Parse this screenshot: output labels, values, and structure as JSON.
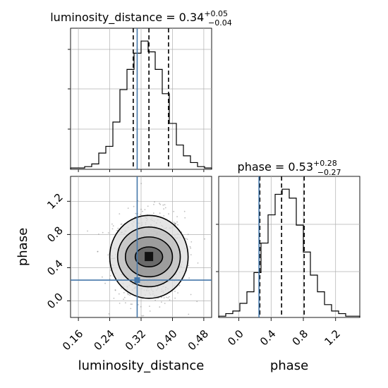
{
  "chart_data": {
    "type": "corner",
    "parameters": [
      "luminosity_distance",
      "phase"
    ],
    "axis_labels": {
      "x_bottom_left": "luminosity_distance",
      "x_bottom_right": "phase",
      "y_left": "phase"
    },
    "titles": [
      {
        "name": "luminosity_distance",
        "prefix": "luminosity_distance = 0.34",
        "sup": "+0.05",
        "sub": "−0.04"
      },
      {
        "name": "phase",
        "prefix": "phase = 0.53",
        "sup": "+0.28",
        "sub": "−0.27"
      }
    ],
    "truths": {
      "luminosity_distance": 0.31,
      "phase": 0.25
    },
    "luminosity_distance": {
      "xlim": [
        0.14,
        0.5
      ],
      "ticks": [
        "0.16",
        "0.24",
        "0.32",
        "0.40",
        "0.48"
      ],
      "tick_values": [
        0.16,
        0.24,
        0.32,
        0.4,
        0.48
      ],
      "quantiles": [
        0.3,
        0.34,
        0.39
      ],
      "hist": {
        "edges": [
          0.14,
          0.158,
          0.176,
          0.194,
          0.212,
          0.23,
          0.248,
          0.266,
          0.284,
          0.302,
          0.32,
          0.338,
          0.356,
          0.374,
          0.392,
          0.41,
          0.428,
          0.446,
          0.464,
          0.482,
          0.5
        ],
        "counts": [
          1,
          1,
          2,
          4,
          12,
          17,
          35,
          59,
          74,
          86,
          95,
          87,
          74,
          56,
          34,
          18,
          10,
          5,
          2,
          1
        ]
      }
    },
    "phase": {
      "xlim": [
        -0.25,
        1.5
      ],
      "ylim": [
        -0.2,
        1.5
      ],
      "ticks": [
        "0.0",
        "0.4",
        "0.8",
        "1.2"
      ],
      "tick_values": [
        0.0,
        0.4,
        0.8,
        1.2
      ],
      "quantiles": [
        0.26,
        0.53,
        0.81
      ],
      "hist": {
        "edges": [
          -0.25,
          -0.1625,
          -0.075,
          0.0125,
          0.1,
          0.1875,
          0.275,
          0.3625,
          0.45,
          0.5375,
          0.625,
          0.7125,
          0.8,
          0.8875,
          0.975,
          1.0625,
          1.15,
          1.2375,
          1.325,
          1.4125,
          1.5
        ],
        "counts": [
          1,
          3,
          5,
          11,
          20,
          35,
          58,
          80,
          96,
          100,
          93,
          72,
          51,
          33,
          20,
          10,
          5,
          3,
          1,
          1
        ]
      }
    },
    "joint": {
      "center": [
        0.34,
        0.53
      ],
      "contour_levels": [
        {
          "rx": 0.035,
          "ry": 0.12
        },
        {
          "rx": 0.06,
          "ry": 0.24
        },
        {
          "rx": 0.08,
          "ry": 0.36
        },
        {
          "rx": 0.1,
          "ry": 0.5
        }
      ]
    },
    "colors": {
      "truth": "#4477aa",
      "line": "#000000",
      "grid": "#b0b0b0"
    },
    "grid": true
  }
}
